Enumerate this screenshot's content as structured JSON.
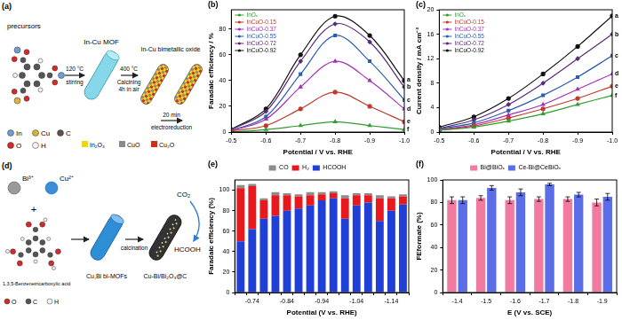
{
  "diagrams": {
    "a": {
      "panel_label": "(a)",
      "precursors": "precursors",
      "atoms": [
        "In",
        "Cu",
        "C",
        "O",
        "H"
      ],
      "step1": [
        "120 °C",
        "stirring"
      ],
      "mof": "In-Cu MOF",
      "step2": [
        "400 °C",
        "Calcining",
        "4h in air"
      ],
      "oxide": "In-Cu bimetallic oxide",
      "step3": [
        "20 min",
        "electroreduction"
      ],
      "phases": [
        "In₂O₃",
        "CuO",
        "Cu₂O"
      ]
    },
    "d": {
      "panel_label": "(d)",
      "ions": [
        "Bi³⁺",
        "Cu²⁺"
      ],
      "plus": "+",
      "linker": "1,3,5-Benzenetricarboxylic acid",
      "atoms": [
        "O",
        "C",
        "H"
      ],
      "mof": "Cu,Bi bi-MOFs",
      "step": "calcination",
      "product": "Cu-Bi/Bi₂O₃@C",
      "reactant": "CO₂",
      "output": "HCOOH"
    }
  },
  "chart_data": [
    {
      "panel_label": "(b)",
      "type": "line",
      "x_label": "Potential / V vs. RHE",
      "y_label": "Faradaic efficiency / %",
      "x": [
        -0.5,
        -0.6,
        -0.7,
        -0.8,
        -0.9,
        -1
      ],
      "xlim": [
        -0.5,
        -1
      ],
      "xticks": [
        -0.5,
        -0.6,
        -0.7,
        -0.8,
        -0.9,
        {
          "value": -1,
          "label": "-1.0"
        }
      ],
      "ylim": [
        0,
        95
      ],
      "yticks": [
        0,
        20,
        40,
        60,
        80
      ],
      "grid": false,
      "legend": "upper left",
      "series": [
        {
          "name": "InOₓ",
          "color": "#2e9e2e",
          "marker": "triangle",
          "annotation": "f",
          "values": [
            0,
            2,
            5,
            8,
            5,
            2
          ]
        },
        {
          "name": "InCuO-0.15",
          "color": "#c0392b",
          "marker": "circle",
          "annotation": "e",
          "values": [
            1,
            5,
            18,
            31,
            20,
            8
          ]
        },
        {
          "name": "InCuO-0.37",
          "color": "#a52fb8",
          "marker": "triangle",
          "annotation": "d",
          "values": [
            1,
            10,
            35,
            55,
            40,
            18
          ]
        },
        {
          "name": "InCuO-0.55",
          "color": "#2a5db0",
          "marker": "square",
          "annotation": "c",
          "values": [
            1,
            12,
            45,
            75,
            55,
            25
          ]
        },
        {
          "name": "InCuO-0.72",
          "color": "#5a2a7a",
          "marker": "diamond",
          "annotation": "b",
          "values": [
            2,
            16,
            55,
            84,
            70,
            35
          ]
        },
        {
          "name": "InCuO-0.92",
          "color": "#111111",
          "marker": "circle",
          "annotation": "a",
          "values": [
            2,
            18,
            60,
            90,
            75,
            40
          ]
        }
      ]
    },
    {
      "panel_label": "(c)",
      "type": "line",
      "x_label": "Potential / V vs. RHE",
      "y_label": "Current density / mA cm⁻²",
      "x": [
        -0.5,
        -0.6,
        -0.7,
        -0.8,
        -0.9,
        -1
      ],
      "xlim": [
        -0.5,
        -1
      ],
      "xticks": [
        -0.5,
        -0.6,
        -0.7,
        -0.8,
        -0.9,
        {
          "value": -1,
          "label": "-1.0"
        }
      ],
      "ylim": [
        0,
        20
      ],
      "yticks": [
        0,
        4,
        8,
        12,
        16,
        20
      ],
      "grid": false,
      "legend": "upper left",
      "series": [
        {
          "name": "InOₓ",
          "color": "#2e9e2e",
          "marker": "triangle",
          "annotation": "f",
          "values": [
            0.3,
            0.8,
            1.8,
            3,
            4.5,
            6
          ]
        },
        {
          "name": "InCuO-0.15",
          "color": "#c0392b",
          "marker": "circle",
          "annotation": "e",
          "values": [
            0.3,
            1,
            2.3,
            3.8,
            5.5,
            7.5
          ]
        },
        {
          "name": "InCuO-0.37",
          "color": "#a52fb8",
          "marker": "triangle",
          "annotation": "d",
          "values": [
            0.4,
            1.2,
            2.8,
            4.5,
            7,
            9.5
          ]
        },
        {
          "name": "InCuO-0.55",
          "color": "#2a5db0",
          "marker": "square",
          "annotation": "c",
          "values": [
            0.5,
            1.5,
            3.5,
            6,
            9,
            12.5
          ]
        },
        {
          "name": "InCuO-0.72",
          "color": "#5a2a7a",
          "marker": "diamond",
          "annotation": "b",
          "values": [
            0.6,
            2,
            4.5,
            8,
            12,
            16
          ]
        },
        {
          "name": "InCuO-0.92",
          "color": "#111111",
          "marker": "circle",
          "annotation": "a",
          "values": [
            0.8,
            2.5,
            5.5,
            9.5,
            14,
            19
          ]
        }
      ]
    },
    {
      "panel_label": "(e)",
      "type": "bar",
      "stacked": true,
      "x_label": "Potential (V vs. RHE)",
      "y_label": "Faradaic efficiency (%)",
      "categories": [
        null,
        "-0.74",
        null,
        null,
        "-0.84",
        null,
        null,
        "-0.94",
        null,
        null,
        "-1.04",
        null,
        null,
        "-1.14",
        null
      ],
      "ylim": [
        0,
        110
      ],
      "yticks": [
        0,
        20,
        40,
        60,
        80,
        100
      ],
      "grid": false,
      "legend": "top",
      "series": [
        {
          "name": "CO",
          "color": "#8c8c8c",
          "values": [
            3,
            2,
            2,
            3,
            2,
            2,
            3,
            2,
            2,
            3,
            2,
            2,
            3,
            2,
            2
          ]
        },
        {
          "name": "H₂",
          "color": "#e8191c",
          "values": [
            52,
            42,
            18,
            20,
            15,
            12,
            10,
            6,
            5,
            20,
            10,
            7,
            22,
            12,
            8
          ]
        },
        {
          "name": "HCOOH",
          "color": "#1f3fd6",
          "values": [
            50,
            62,
            72,
            75,
            80,
            82,
            85,
            90,
            92,
            72,
            85,
            88,
            70,
            80,
            86
          ]
        }
      ]
    },
    {
      "panel_label": "(f)",
      "type": "bar",
      "x_label": "E (V vs. SCE)",
      "y_label": "FEformate (%)",
      "categories": [
        "-1.4",
        "-1.5",
        "-1.6",
        "-1.7",
        "-1.8",
        "-1.9"
      ],
      "ylim": [
        0,
        100
      ],
      "yticks": [
        0,
        20,
        40,
        60,
        80,
        100
      ],
      "grid": false,
      "legend": "top",
      "series": [
        {
          "name": "Bi@BiOₓ",
          "color": "#f07aa0",
          "values": [
            82,
            84,
            82,
            83,
            83,
            80
          ],
          "errors": [
            3,
            2,
            3,
            2,
            2,
            3
          ]
        },
        {
          "name": "Ce-Bi@CeBiOₓ",
          "color": "#5b6ee8",
          "values": [
            82,
            93,
            89,
            96,
            87,
            85
          ],
          "errors": [
            3,
            2,
            3,
            1,
            2,
            3
          ]
        }
      ]
    }
  ]
}
